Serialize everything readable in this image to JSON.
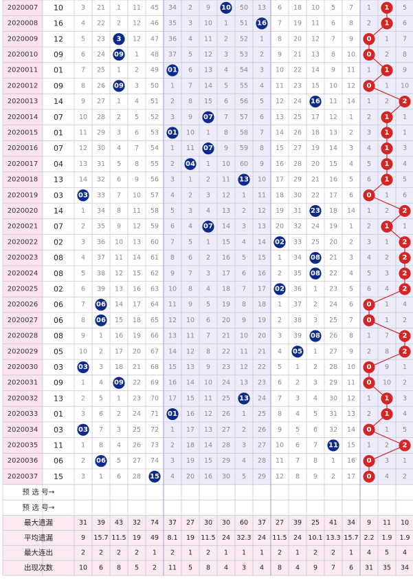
{
  "chart_data": {
    "type": "table",
    "periods": [
      "2020007",
      "2020008",
      "2020009",
      "2020010",
      "2020011",
      "2020012",
      "2020013",
      "2020014",
      "2020015",
      "2020016",
      "2020017",
      "2020018",
      "2020019",
      "2020020",
      "2020021",
      "2020022",
      "2020023",
      "2020024",
      "2020025",
      "2020026",
      "2020027",
      "2020028",
      "2020029",
      "2020030",
      "2020031",
      "2020032",
      "2020033",
      "2020034",
      "2020035",
      "2020036",
      "2020037"
    ],
    "draw": [
      "10",
      "16",
      "12",
      "09",
      "01",
      "09",
      "14",
      "07",
      "01",
      "07",
      "04",
      "13",
      "03",
      "14",
      "07",
      "02",
      "08",
      "08",
      "02",
      "06",
      "06",
      "08",
      "05",
      "03",
      "09",
      "13",
      "01",
      "03",
      "11",
      "06",
      "15"
    ],
    "rows": [
      [
        "3",
        "21",
        "1",
        "11",
        "45",
        "34",
        "2",
        "9",
        "10",
        "50",
        "13",
        "6",
        "18",
        "10",
        "5",
        "7",
        "1",
        "1",
        "5"
      ],
      [
        "4",
        "22",
        "2",
        "12",
        "46",
        "35",
        "3",
        "10",
        "1",
        "51",
        "16",
        "7",
        "19",
        "11",
        "6",
        "8",
        "2",
        "1",
        "6"
      ],
      [
        "5",
        "23",
        "3",
        "12",
        "47",
        "36",
        "4",
        "11",
        "2",
        "52",
        "1",
        "8",
        "20",
        "12",
        "7",
        "9",
        "0",
        "1",
        "7"
      ],
      [
        "6",
        "24",
        "09",
        "1",
        "48",
        "37",
        "5",
        "12",
        "3",
        "53",
        "2",
        "9",
        "21",
        "13",
        "8",
        "10",
        "0",
        "2",
        "8"
      ],
      [
        "7",
        "25",
        "1",
        "2",
        "49",
        "01",
        "6",
        "13",
        "4",
        "54",
        "3",
        "10",
        "22",
        "14",
        "9",
        "11",
        "1",
        "1",
        "9"
      ],
      [
        "8",
        "26",
        "09",
        "3",
        "50",
        "1",
        "7",
        "14",
        "5",
        "55",
        "4",
        "11",
        "23",
        "15",
        "10",
        "12",
        "0",
        "1",
        "10"
      ],
      [
        "9",
        "27",
        "1",
        "4",
        "51",
        "2",
        "8",
        "15",
        "6",
        "56",
        "5",
        "12",
        "24",
        "16",
        "11",
        "14",
        "1",
        "2",
        "2"
      ],
      [
        "10",
        "28",
        "2",
        "5",
        "52",
        "3",
        "9",
        "07",
        "7",
        "57",
        "6",
        "13",
        "25",
        "17",
        "12",
        "1",
        "2",
        "1",
        "1"
      ],
      [
        "11",
        "29",
        "3",
        "6",
        "53",
        "01",
        "10",
        "1",
        "8",
        "58",
        "7",
        "14",
        "26",
        "18",
        "13",
        "2",
        "3",
        "1",
        "1"
      ],
      [
        "12",
        "30",
        "4",
        "7",
        "54",
        "1",
        "11",
        "07",
        "9",
        "59",
        "8",
        "15",
        "27",
        "19",
        "14",
        "3",
        "4",
        "1",
        "3"
      ],
      [
        "13",
        "31",
        "5",
        "8",
        "55",
        "2",
        "04",
        "1",
        "10",
        "60",
        "9",
        "16",
        "28",
        "20",
        "15",
        "4",
        "5",
        "1",
        "4"
      ],
      [
        "14",
        "32",
        "6",
        "9",
        "56",
        "3",
        "1",
        "2",
        "11",
        "13",
        "10",
        "17",
        "29",
        "21",
        "16",
        "5",
        "6",
        "1",
        "5"
      ],
      [
        "03",
        "33",
        "7",
        "10",
        "57",
        "4",
        "2",
        "3",
        "12",
        "1",
        "11",
        "18",
        "30",
        "22",
        "17",
        "6",
        "0",
        "1",
        "6"
      ],
      [
        "1",
        "34",
        "8",
        "11",
        "58",
        "5",
        "3",
        "4",
        "13",
        "2",
        "12",
        "19",
        "31",
        "23",
        "18",
        "14",
        "1",
        "2",
        "2"
      ],
      [
        "2",
        "35",
        "9",
        "12",
        "59",
        "6",
        "4",
        "07",
        "14",
        "3",
        "13",
        "20",
        "32",
        "24",
        "19",
        "1",
        "2",
        "1",
        "1"
      ],
      [
        "3",
        "36",
        "10",
        "13",
        "60",
        "7",
        "5",
        "1",
        "15",
        "4",
        "14",
        "02",
        "33",
        "25",
        "20",
        "2",
        "3",
        "1",
        "2"
      ],
      [
        "4",
        "37",
        "11",
        "14",
        "61",
        "8",
        "6",
        "2",
        "16",
        "5",
        "15",
        "1",
        "34",
        "08",
        "21",
        "3",
        "4",
        "2",
        "2"
      ],
      [
        "5",
        "38",
        "12",
        "15",
        "62",
        "9",
        "7",
        "3",
        "17",
        "6",
        "16",
        "2",
        "35",
        "08",
        "22",
        "4",
        "5",
        "3",
        "2"
      ],
      [
        "6",
        "39",
        "13",
        "16",
        "63",
        "10",
        "8",
        "4",
        "18",
        "7",
        "17",
        "02",
        "36",
        "1",
        "23",
        "5",
        "6",
        "4",
        "2"
      ],
      [
        "7",
        "06",
        "14",
        "17",
        "64",
        "11",
        "9",
        "5",
        "19",
        "8",
        "18",
        "1",
        "37",
        "2",
        "24",
        "6",
        "0",
        "1",
        "4"
      ],
      [
        "8",
        "06",
        "15",
        "18",
        "65",
        "12",
        "10",
        "6",
        "20",
        "9",
        "19",
        "2",
        "38",
        "3",
        "25",
        "7",
        "0",
        "1",
        "2"
      ],
      [
        "9",
        "1",
        "16",
        "19",
        "66",
        "13",
        "11",
        "7",
        "21",
        "10",
        "20",
        "3",
        "39",
        "08",
        "26",
        "8",
        "1",
        "7",
        "2"
      ],
      [
        "10",
        "2",
        "17",
        "20",
        "67",
        "14",
        "12",
        "8",
        "22",
        "11",
        "21",
        "4",
        "05",
        "1",
        "27",
        "9",
        "2",
        "8",
        "2"
      ],
      [
        "03",
        "3",
        "18",
        "21",
        "68",
        "15",
        "13",
        "9",
        "23",
        "12",
        "22",
        "5",
        "1",
        "2",
        "28",
        "10",
        "0",
        "9",
        "1"
      ],
      [
        "1",
        "4",
        "09",
        "22",
        "69",
        "16",
        "14",
        "10",
        "24",
        "13",
        "23",
        "6",
        "2",
        "3",
        "29",
        "11",
        "0",
        "10",
        "2"
      ],
      [
        "2",
        "5",
        "1",
        "23",
        "70",
        "17",
        "15",
        "11",
        "25",
        "13",
        "24",
        "7",
        "3",
        "4",
        "30",
        "12",
        "1",
        "1",
        "3"
      ],
      [
        "3",
        "6",
        "2",
        "24",
        "71",
        "01",
        "16",
        "12",
        "26",
        "1",
        "25",
        "8",
        "4",
        "5",
        "31",
        "13",
        "2",
        "1",
        "4"
      ],
      [
        "03",
        "7",
        "3",
        "25",
        "72",
        "1",
        "17",
        "13",
        "27",
        "2",
        "26",
        "9",
        "5",
        "6",
        "32",
        "14",
        "0",
        "1",
        "5"
      ],
      [
        "1",
        "8",
        "4",
        "26",
        "73",
        "2",
        "18",
        "14",
        "28",
        "3",
        "27",
        "10",
        "6",
        "7",
        "11",
        "15",
        "1",
        "2",
        "2"
      ],
      [
        "2",
        "06",
        "5",
        "27",
        "74",
        "3",
        "19",
        "15",
        "29",
        "4",
        "28",
        "11",
        "7",
        "8",
        "1",
        "16",
        "0",
        "3",
        "1"
      ],
      [
        "3",
        "1",
        "6",
        "28",
        "15",
        "4",
        "20",
        "16",
        "30",
        "5",
        "29",
        "12",
        "8",
        "9",
        "2",
        "17",
        "0",
        "4",
        "2"
      ]
    ],
    "hits": [
      8,
      10,
      2,
      2,
      5,
      2,
      13,
      7,
      5,
      7,
      6,
      9,
      0,
      13,
      7,
      11,
      13,
      13,
      11,
      1,
      1,
      13,
      12,
      0,
      2,
      9,
      5,
      0,
      14,
      1,
      4
    ],
    "side": [
      17,
      17,
      16,
      16,
      17,
      16,
      18,
      17,
      17,
      17,
      17,
      17,
      16,
      18,
      17,
      18,
      18,
      18,
      18,
      16,
      16,
      18,
      18,
      16,
      16,
      17,
      17,
      16,
      18,
      16,
      16
    ],
    "forecast_labels": [
      "预 选 号→",
      "预 选 号→"
    ],
    "stats": [
      {
        "label": "最大遗漏",
        "values": [
          "31",
          "39",
          "43",
          "32",
          "74",
          "37",
          "27",
          "30",
          "30",
          "60",
          "37",
          "27",
          "39",
          "25",
          "41",
          "34",
          "9",
          "11",
          "10"
        ]
      },
      {
        "label": "平均遗漏",
        "values": [
          "9",
          "15.7",
          "11.5",
          "19",
          "49",
          "8.1",
          "19",
          "11.5",
          "24",
          "32.3",
          "24",
          "11.5",
          "24",
          "10.1",
          "13.3",
          "15.7",
          "2.2",
          "1.9",
          "1.9"
        ]
      },
      {
        "label": "最大连出",
        "values": [
          "2",
          "2",
          "2",
          "2",
          "1",
          "2",
          "1",
          "2",
          "1",
          "1",
          "1",
          "2",
          "1",
          "2",
          "2",
          "1",
          "4",
          "5",
          "4"
        ]
      },
      {
        "label": "出现次数",
        "values": [
          "10",
          "6",
          "8",
          "5",
          "2",
          "11",
          "5",
          "8",
          "4",
          "3",
          "4",
          "8",
          "4",
          "9",
          "7",
          "6",
          "31",
          "35",
          "34"
        ]
      }
    ],
    "colors": {
      "blue_ball": "#0c2a8c",
      "red_ball": "#d42525",
      "period_bg": "#fbe3ef",
      "band_bg": "#ececfb",
      "grid": "#c8c8d8",
      "number_text": "#666666"
    }
  }
}
